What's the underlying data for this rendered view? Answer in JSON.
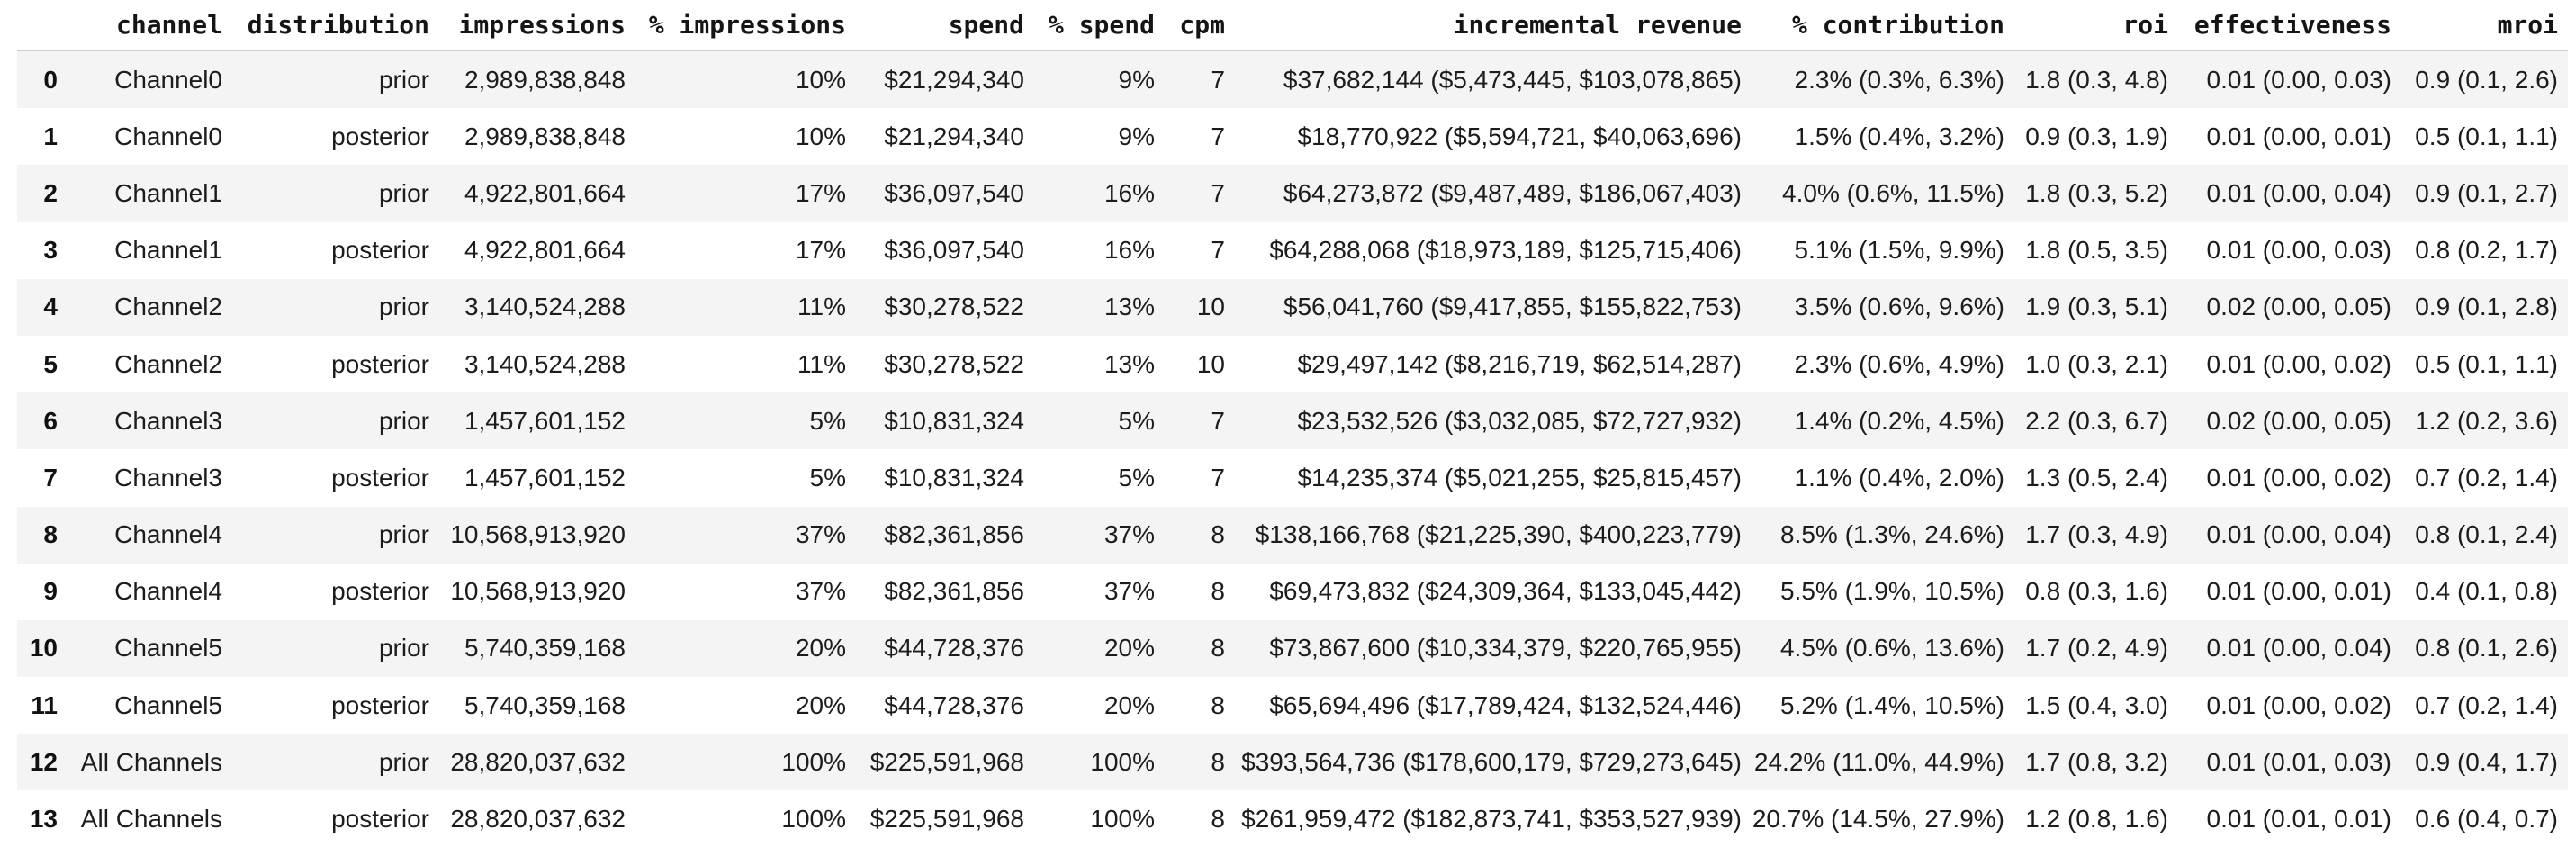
{
  "table": {
    "columns": [
      "",
      "channel",
      "distribution",
      "impressions",
      "% impressions",
      "spend",
      "% spend",
      "cpm",
      "incremental revenue",
      "% contribution",
      "roi",
      "effectiveness",
      "mroi"
    ],
    "column_keys": [
      "index",
      "channel",
      "distribution",
      "impressions",
      "pct-impressions",
      "spend",
      "pct-spend",
      "cpm",
      "incremental-revenue",
      "pct-contribution",
      "roi",
      "effectiveness",
      "mroi"
    ],
    "rows": [
      [
        "0",
        "Channel0",
        "prior",
        "2,989,838,848",
        "10%",
        "$21,294,340",
        "9%",
        "7",
        "$37,682,144 ($5,473,445, $103,078,865)",
        "2.3% (0.3%, 6.3%)",
        "1.8 (0.3, 4.8)",
        "0.01 (0.00, 0.03)",
        "0.9 (0.1, 2.6)"
      ],
      [
        "1",
        "Channel0",
        "posterior",
        "2,989,838,848",
        "10%",
        "$21,294,340",
        "9%",
        "7",
        "$18,770,922 ($5,594,721, $40,063,696)",
        "1.5% (0.4%, 3.2%)",
        "0.9 (0.3, 1.9)",
        "0.01 (0.00, 0.01)",
        "0.5 (0.1, 1.1)"
      ],
      [
        "2",
        "Channel1",
        "prior",
        "4,922,801,664",
        "17%",
        "$36,097,540",
        "16%",
        "7",
        "$64,273,872 ($9,487,489, $186,067,403)",
        "4.0% (0.6%, 11.5%)",
        "1.8 (0.3, 5.2)",
        "0.01 (0.00, 0.04)",
        "0.9 (0.1, 2.7)"
      ],
      [
        "3",
        "Channel1",
        "posterior",
        "4,922,801,664",
        "17%",
        "$36,097,540",
        "16%",
        "7",
        "$64,288,068 ($18,973,189, $125,715,406)",
        "5.1% (1.5%, 9.9%)",
        "1.8 (0.5, 3.5)",
        "0.01 (0.00, 0.03)",
        "0.8 (0.2, 1.7)"
      ],
      [
        "4",
        "Channel2",
        "prior",
        "3,140,524,288",
        "11%",
        "$30,278,522",
        "13%",
        "10",
        "$56,041,760 ($9,417,855, $155,822,753)",
        "3.5% (0.6%, 9.6%)",
        "1.9 (0.3, 5.1)",
        "0.02 (0.00, 0.05)",
        "0.9 (0.1, 2.8)"
      ],
      [
        "5",
        "Channel2",
        "posterior",
        "3,140,524,288",
        "11%",
        "$30,278,522",
        "13%",
        "10",
        "$29,497,142 ($8,216,719, $62,514,287)",
        "2.3% (0.6%, 4.9%)",
        "1.0 (0.3, 2.1)",
        "0.01 (0.00, 0.02)",
        "0.5 (0.1, 1.1)"
      ],
      [
        "6",
        "Channel3",
        "prior",
        "1,457,601,152",
        "5%",
        "$10,831,324",
        "5%",
        "7",
        "$23,532,526 ($3,032,085, $72,727,932)",
        "1.4% (0.2%, 4.5%)",
        "2.2 (0.3, 6.7)",
        "0.02 (0.00, 0.05)",
        "1.2 (0.2, 3.6)"
      ],
      [
        "7",
        "Channel3",
        "posterior",
        "1,457,601,152",
        "5%",
        "$10,831,324",
        "5%",
        "7",
        "$14,235,374 ($5,021,255, $25,815,457)",
        "1.1% (0.4%, 2.0%)",
        "1.3 (0.5, 2.4)",
        "0.01 (0.00, 0.02)",
        "0.7 (0.2, 1.4)"
      ],
      [
        "8",
        "Channel4",
        "prior",
        "10,568,913,920",
        "37%",
        "$82,361,856",
        "37%",
        "8",
        "$138,166,768 ($21,225,390, $400,223,779)",
        "8.5% (1.3%, 24.6%)",
        "1.7 (0.3, 4.9)",
        "0.01 (0.00, 0.04)",
        "0.8 (0.1, 2.4)"
      ],
      [
        "9",
        "Channel4",
        "posterior",
        "10,568,913,920",
        "37%",
        "$82,361,856",
        "37%",
        "8",
        "$69,473,832 ($24,309,364, $133,045,442)",
        "5.5% (1.9%, 10.5%)",
        "0.8 (0.3, 1.6)",
        "0.01 (0.00, 0.01)",
        "0.4 (0.1, 0.8)"
      ],
      [
        "10",
        "Channel5",
        "prior",
        "5,740,359,168",
        "20%",
        "$44,728,376",
        "20%",
        "8",
        "$73,867,600 ($10,334,379, $220,765,955)",
        "4.5% (0.6%, 13.6%)",
        "1.7 (0.2, 4.9)",
        "0.01 (0.00, 0.04)",
        "0.8 (0.1, 2.6)"
      ],
      [
        "11",
        "Channel5",
        "posterior",
        "5,740,359,168",
        "20%",
        "$44,728,376",
        "20%",
        "8",
        "$65,694,496 ($17,789,424, $132,524,446)",
        "5.2% (1.4%, 10.5%)",
        "1.5 (0.4, 3.0)",
        "0.01 (0.00, 0.02)",
        "0.7 (0.2, 1.4)"
      ],
      [
        "12",
        "All Channels",
        "prior",
        "28,820,037,632",
        "100%",
        "$225,591,968",
        "100%",
        "8",
        "$393,564,736 ($178,600,179, $729,273,645)",
        "24.2% (11.0%, 44.9%)",
        "1.7 (0.8, 3.2)",
        "0.01 (0.01, 0.03)",
        "0.9 (0.4, 1.7)"
      ],
      [
        "13",
        "All Channels",
        "posterior",
        "28,820,037,632",
        "100%",
        "$225,591,968",
        "100%",
        "8",
        "$261,959,472 ($182,873,741, $353,527,939)",
        "20.7% (14.5%, 27.9%)",
        "1.2 (0.8, 1.6)",
        "0.01 (0.01, 0.01)",
        "0.6 (0.4, 0.7)"
      ]
    ]
  },
  "colors": {
    "stripe": "#f4f4f4",
    "header_divider": "#cfcfcf",
    "text": "#1c1c1c",
    "background": "#ffffff"
  }
}
